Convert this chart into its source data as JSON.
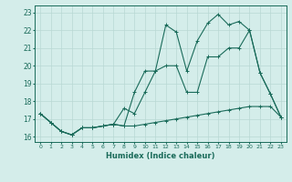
{
  "xlabel": "Humidex (Indice chaleur)",
  "x_values": [
    0,
    1,
    2,
    3,
    4,
    5,
    6,
    7,
    8,
    9,
    10,
    11,
    12,
    13,
    14,
    15,
    16,
    17,
    18,
    19,
    20,
    21,
    22,
    23
  ],
  "line1": [
    17.3,
    16.8,
    16.3,
    16.1,
    16.5,
    16.5,
    16.6,
    16.7,
    16.6,
    16.6,
    16.7,
    16.8,
    16.9,
    17.0,
    17.1,
    17.2,
    17.3,
    17.4,
    17.5,
    17.6,
    17.7,
    17.7,
    17.7,
    17.1
  ],
  "line2": [
    17.3,
    16.8,
    16.3,
    16.1,
    16.5,
    16.5,
    16.6,
    16.7,
    17.6,
    17.3,
    18.5,
    19.7,
    22.3,
    21.9,
    19.7,
    21.4,
    22.4,
    22.9,
    22.3,
    22.5,
    22.0,
    19.6,
    18.4,
    17.1
  ],
  "line3": [
    17.3,
    16.8,
    16.3,
    16.1,
    16.5,
    16.5,
    16.6,
    16.7,
    16.6,
    18.5,
    19.7,
    19.7,
    20.0,
    20.0,
    18.5,
    18.5,
    20.5,
    20.5,
    21.0,
    21.0,
    22.0,
    19.6,
    18.4,
    17.1
  ],
  "bg_color": "#d4edea",
  "line_color": "#1a6b5a",
  "grid_color": "#b8d8d4",
  "ylim": [
    15.7,
    23.4
  ],
  "yticks": [
    16,
    17,
    18,
    19,
    20,
    21,
    22,
    23
  ]
}
